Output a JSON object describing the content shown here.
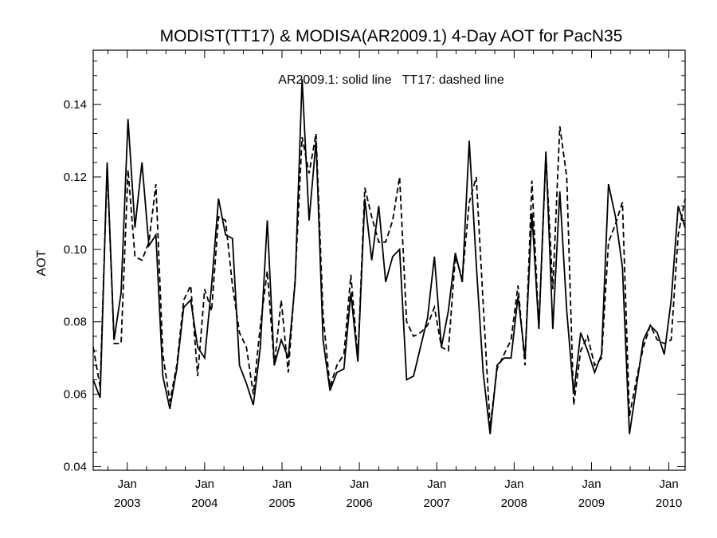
{
  "chart_data": {
    "type": "line",
    "title": "MODIST(TT17) & MODISA(AR2009.1) 4-Day AOT for PacN35",
    "annotation": "AR2009.1: solid line   TT17: dashed line",
    "ylabel": "AOT",
    "xlabel": "",
    "ylim": [
      0.039,
      0.155
    ],
    "xlim": [
      2002.56,
      2010.21
    ],
    "grid": false,
    "yticks": [
      0.04,
      0.06,
      0.08,
      0.1,
      0.12,
      0.14
    ],
    "ytick_labels": [
      "0.04",
      "0.06",
      "0.08",
      "0.10",
      "0.12",
      "0.14"
    ],
    "xticks": [
      {
        "x": 2003.0,
        "month": "Jan",
        "year": "2003"
      },
      {
        "x": 2004.0,
        "month": "Jan",
        "year": "2004"
      },
      {
        "x": 2005.0,
        "month": "Jan",
        "year": "2005"
      },
      {
        "x": 2006.0,
        "month": "Jan",
        "year": "2006"
      },
      {
        "x": 2007.0,
        "month": "Jan",
        "year": "2007"
      },
      {
        "x": 2008.0,
        "month": "Jan",
        "year": "2008"
      },
      {
        "x": 2009.0,
        "month": "Jan",
        "year": "2009"
      },
      {
        "x": 2010.0,
        "month": "Jan",
        "year": "2010"
      }
    ],
    "series": [
      {
        "style": "solid",
        "x": [
          2002.56,
          2002.65,
          2002.74,
          2002.83,
          2002.92,
          2003.01,
          2003.1,
          2003.19,
          2003.28,
          2003.37,
          2003.46,
          2003.55,
          2003.64,
          2003.73,
          2003.82,
          2003.91,
          2004.0,
          2004.09,
          2004.18,
          2004.27,
          2004.36,
          2004.45,
          2004.54,
          2004.63,
          2004.72,
          2004.81,
          2004.9,
          2004.99,
          2005.08,
          2005.17,
          2005.26,
          2005.35,
          2005.44,
          2005.53,
          2005.62,
          2005.71,
          2005.8,
          2005.89,
          2005.98,
          2006.07,
          2006.16,
          2006.25,
          2006.34,
          2006.43,
          2006.52,
          2006.61,
          2006.7,
          2006.79,
          2006.88,
          2006.97,
          2007.06,
          2007.15,
          2007.24,
          2007.33,
          2007.42,
          2007.51,
          2007.6,
          2007.69,
          2007.78,
          2007.87,
          2007.96,
          2008.05,
          2008.14,
          2008.23,
          2008.32,
          2008.41,
          2008.5,
          2008.59,
          2008.68,
          2008.77,
          2008.86,
          2008.95,
          2009.04,
          2009.13,
          2009.22,
          2009.31,
          2009.4,
          2009.49,
          2009.58,
          2009.67,
          2009.76,
          2009.85,
          2009.94,
          2010.03,
          2010.12,
          2010.21
        ],
        "values": [
          0.064,
          0.059,
          0.124,
          0.075,
          0.088,
          0.136,
          0.106,
          0.124,
          0.101,
          0.104,
          0.065,
          0.056,
          0.067,
          0.084,
          0.086,
          0.073,
          0.07,
          0.09,
          0.114,
          0.104,
          0.103,
          0.068,
          0.063,
          0.057,
          0.073,
          0.108,
          0.068,
          0.075,
          0.07,
          0.091,
          0.147,
          0.108,
          0.13,
          0.075,
          0.061,
          0.066,
          0.067,
          0.088,
          0.069,
          0.114,
          0.097,
          0.112,
          0.091,
          0.098,
          0.1,
          0.064,
          0.065,
          0.073,
          0.081,
          0.098,
          0.073,
          0.083,
          0.099,
          0.091,
          0.13,
          0.096,
          0.066,
          0.049,
          0.068,
          0.07,
          0.07,
          0.087,
          0.07,
          0.11,
          0.078,
          0.127,
          0.078,
          0.116,
          0.083,
          0.06,
          0.077,
          0.072,
          0.066,
          0.071,
          0.118,
          0.109,
          0.095,
          0.049,
          0.062,
          0.075,
          0.079,
          0.077,
          0.071,
          0.086,
          0.112,
          0.106
        ]
      },
      {
        "style": "dashed",
        "x": [
          2002.56,
          2002.65,
          2002.74,
          2002.83,
          2002.92,
          2003.01,
          2003.1,
          2003.19,
          2003.28,
          2003.37,
          2003.46,
          2003.55,
          2003.64,
          2003.73,
          2003.82,
          2003.91,
          2004.0,
          2004.09,
          2004.18,
          2004.27,
          2004.36,
          2004.45,
          2004.54,
          2004.63,
          2004.72,
          2004.81,
          2004.9,
          2004.99,
          2005.08,
          2005.17,
          2005.26,
          2005.35,
          2005.44,
          2005.53,
          2005.62,
          2005.71,
          2005.8,
          2005.89,
          2005.98,
          2006.07,
          2006.16,
          2006.25,
          2006.34,
          2006.43,
          2006.52,
          2006.61,
          2006.7,
          2006.79,
          2006.88,
          2006.97,
          2007.06,
          2007.15,
          2007.24,
          2007.33,
          2007.42,
          2007.51,
          2007.6,
          2007.69,
          2007.78,
          2007.87,
          2007.96,
          2008.05,
          2008.14,
          2008.23,
          2008.32,
          2008.41,
          2008.5,
          2008.59,
          2008.68,
          2008.77,
          2008.86,
          2008.95,
          2009.04,
          2009.13,
          2009.22,
          2009.31,
          2009.4,
          2009.49,
          2009.58,
          2009.67,
          2009.76,
          2009.85,
          2009.94,
          2010.03,
          2010.12,
          2010.21
        ],
        "values": [
          0.073,
          0.062,
          0.123,
          0.074,
          0.074,
          0.122,
          0.098,
          0.097,
          0.102,
          0.118,
          0.071,
          0.058,
          0.068,
          0.086,
          0.09,
          0.065,
          0.089,
          0.083,
          0.109,
          0.108,
          0.09,
          0.077,
          0.073,
          0.06,
          0.079,
          0.094,
          0.068,
          0.086,
          0.066,
          0.092,
          0.131,
          0.121,
          0.132,
          0.082,
          0.062,
          0.068,
          0.071,
          0.093,
          0.07,
          0.117,
          0.109,
          0.102,
          0.102,
          0.108,
          0.12,
          0.08,
          0.076,
          0.077,
          0.079,
          0.084,
          0.073,
          0.072,
          0.098,
          0.092,
          0.113,
          0.12,
          0.085,
          0.051,
          0.067,
          0.071,
          0.075,
          0.09,
          0.068,
          0.119,
          0.078,
          0.126,
          0.089,
          0.134,
          0.12,
          0.057,
          0.072,
          0.076,
          0.068,
          0.07,
          0.102,
          0.107,
          0.113,
          0.054,
          0.064,
          0.073,
          0.079,
          0.075,
          0.074,
          0.075,
          0.104,
          0.114
        ]
      }
    ]
  }
}
